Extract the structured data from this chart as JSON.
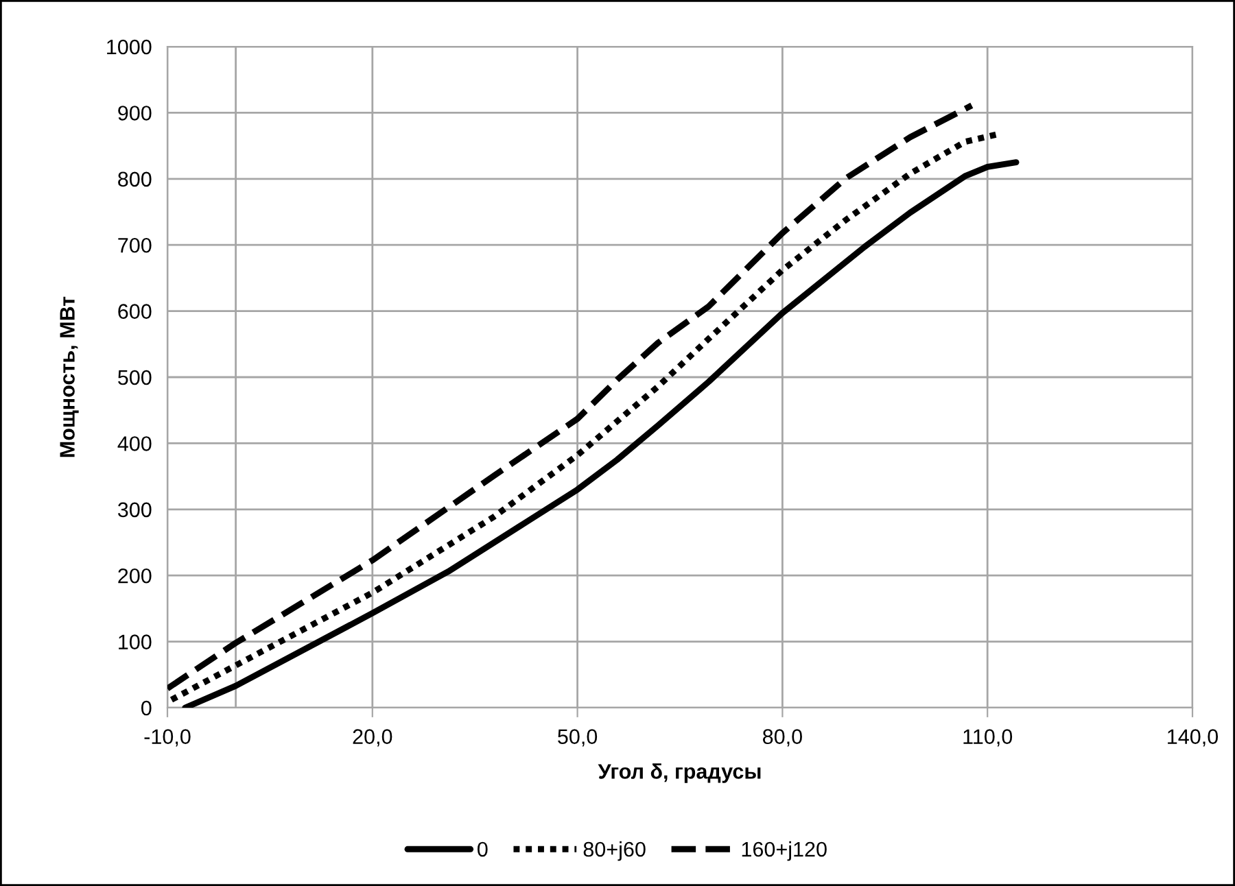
{
  "chart_data": {
    "type": "line",
    "xlabel": "Угол δ, градусы",
    "ylabel": "Мощность, МВт",
    "xlim": [
      -10,
      140
    ],
    "ylim": [
      0,
      1000
    ],
    "xticks": [
      {
        "value": -10,
        "label": "-10,0"
      },
      {
        "value": 20,
        "label": "20,0"
      },
      {
        "value": 50,
        "label": "50,0"
      },
      {
        "value": 80,
        "label": "80,0"
      },
      {
        "value": 110,
        "label": "110,0"
      },
      {
        "value": 140,
        "label": "140,0"
      }
    ],
    "yticks": [
      0,
      100,
      200,
      300,
      400,
      500,
      600,
      700,
      800,
      900,
      1000
    ],
    "grid": true,
    "legend": "bottom",
    "marker": "none",
    "ref_lines": [
      {
        "axis": "x",
        "value": 0,
        "label": null,
        "color": "#a6a6a6"
      }
    ],
    "series": [
      {
        "name": "0",
        "color": "#000000",
        "line_style": "solid",
        "x": [
          -7.4,
          0,
          20,
          31.1,
          50,
          55.8,
          61.8,
          69.2,
          80,
          92,
          98.7,
          106.7,
          110,
          114.2
        ],
        "values": [
          0,
          33,
          143,
          206,
          330,
          375,
          427,
          493,
          597,
          697,
          749,
          804,
          818,
          825
        ]
      },
      {
        "name": "80+j60",
        "color": "#000000",
        "line_style": "dotted",
        "x": [
          -9.4,
          0,
          20,
          37.8,
          50,
          61.8,
          69.2,
          80,
          89.3,
          98.7,
          106.7,
          111.7
        ],
        "values": [
          12,
          64,
          174,
          289,
          382,
          486,
          558,
          662,
          738,
          808,
          856,
          868
        ]
      },
      {
        "name": "160+j120",
        "color": "#000000",
        "line_style": "dashed",
        "x": [
          -10,
          0,
          20,
          37.8,
          50,
          55.8,
          61.8,
          69.2,
          80,
          89.3,
          98.7,
          107.7
        ],
        "values": [
          29,
          98,
          223,
          351,
          437,
          496,
          552,
          607,
          718,
          801,
          863,
          911
        ]
      }
    ]
  }
}
